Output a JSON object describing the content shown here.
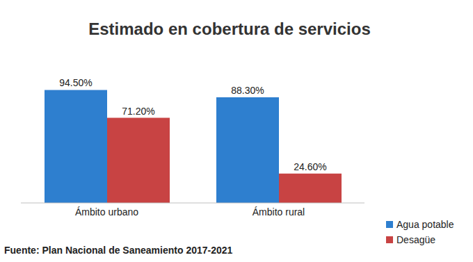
{
  "chart_data": {
    "type": "bar",
    "title": "Estimado en cobertura de servicios",
    "source": "Fuente: Plan Nacional de Saneamiento 2017-2021",
    "categories": [
      "Ámbito urbano",
      "Ámbito rural"
    ],
    "series": [
      {
        "name": "Agua potable",
        "color": "#2e7fcf",
        "values": [
          94.5,
          88.3
        ],
        "value_labels": [
          "94.50%",
          "88.30%"
        ]
      },
      {
        "name": "Desagüe",
        "color": "#c84343",
        "values": [
          71.2,
          24.6
        ],
        "value_labels": [
          "71.20%",
          "24.60%"
        ]
      }
    ],
    "ylim": [
      0,
      100
    ],
    "grid": false,
    "legend": "bottom-right",
    "data_labels": true,
    "tick_labels": "x"
  }
}
